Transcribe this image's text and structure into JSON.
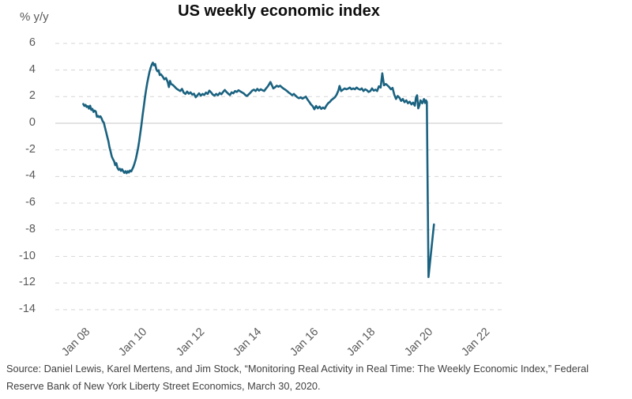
{
  "header": {
    "title": "US weekly economic index",
    "y_axis_unit": "% y/y"
  },
  "source_note": {
    "line1": "Source: Daniel Lewis, Karel Mertens, and Jim Stock, “Monitoring Real Activity in Real Time: The Weekly Economic Index,” Federal",
    "line2": "Reserve Bank of New York Liberty Street Economics, March 30, 2020."
  },
  "colors": {
    "line": "#1a6280",
    "grid": "#d9d9d9",
    "zero_line": "#d2d2d2",
    "axis_text": "#595959",
    "title_text": "#0d0d0d",
    "source_text": "#3f3f3f",
    "background": "#ffffff"
  },
  "chart_data": {
    "type": "line",
    "title": "US weekly economic index",
    "ylabel": "% y/y",
    "xlabel": "",
    "legend_position": "none",
    "grid": "horizontal dashed gridlines; solid line at zero",
    "x_range": [
      2007.08,
      2022.75
    ],
    "y_range": [
      -14,
      6
    ],
    "y_ticks": [
      6,
      4,
      2,
      0,
      -2,
      -4,
      -6,
      -8,
      -10,
      -12,
      -14
    ],
    "x_ticks": [
      {
        "year": 2008,
        "label": "Jan 08"
      },
      {
        "year": 2010,
        "label": "Jan 10"
      },
      {
        "year": 2012,
        "label": "Jan 12"
      },
      {
        "year": 2014,
        "label": "Jan 14"
      },
      {
        "year": 2016,
        "label": "Jan 16"
      },
      {
        "year": 2018,
        "label": "Jan 18"
      },
      {
        "year": 2020,
        "label": "Jan 20"
      },
      {
        "year": 2022,
        "label": "Jan 22"
      }
    ],
    "series": [
      {
        "name": "US Weekly Economic Index (% y/y)",
        "color": "#1a6280",
        "points": [
          [
            2008.06,
            1.45
          ],
          [
            2008.1,
            1.3
          ],
          [
            2008.14,
            1.38
          ],
          [
            2008.18,
            1.22
          ],
          [
            2008.22,
            1.28
          ],
          [
            2008.26,
            1.1
          ],
          [
            2008.3,
            1.32
          ],
          [
            2008.34,
            1.0
          ],
          [
            2008.38,
            1.08
          ],
          [
            2008.42,
            0.85
          ],
          [
            2008.46,
            0.95
          ],
          [
            2008.5,
            0.88
          ],
          [
            2008.54,
            0.48
          ],
          [
            2008.58,
            0.55
          ],
          [
            2008.62,
            0.45
          ],
          [
            2008.66,
            0.52
          ],
          [
            2008.7,
            0.38
          ],
          [
            2008.74,
            0.15
          ],
          [
            2008.78,
            0.05
          ],
          [
            2008.82,
            -0.3
          ],
          [
            2008.86,
            -0.65
          ],
          [
            2008.9,
            -1.0
          ],
          [
            2008.94,
            -1.35
          ],
          [
            2008.98,
            -1.8
          ],
          [
            2009.02,
            -2.15
          ],
          [
            2009.06,
            -2.5
          ],
          [
            2009.1,
            -2.7
          ],
          [
            2009.14,
            -2.85
          ],
          [
            2009.18,
            -3.15
          ],
          [
            2009.22,
            -3.0
          ],
          [
            2009.26,
            -3.35
          ],
          [
            2009.3,
            -3.5
          ],
          [
            2009.34,
            -3.42
          ],
          [
            2009.38,
            -3.58
          ],
          [
            2009.42,
            -3.45
          ],
          [
            2009.46,
            -3.6
          ],
          [
            2009.5,
            -3.72
          ],
          [
            2009.54,
            -3.6
          ],
          [
            2009.58,
            -3.75
          ],
          [
            2009.62,
            -3.6
          ],
          [
            2009.66,
            -3.7
          ],
          [
            2009.7,
            -3.55
          ],
          [
            2009.74,
            -3.62
          ],
          [
            2009.78,
            -3.45
          ],
          [
            2009.82,
            -3.25
          ],
          [
            2009.86,
            -3.0
          ],
          [
            2009.9,
            -2.7
          ],
          [
            2009.94,
            -2.3
          ],
          [
            2009.98,
            -1.9
          ],
          [
            2010.02,
            -1.35
          ],
          [
            2010.06,
            -0.75
          ],
          [
            2010.1,
            -0.1
          ],
          [
            2010.14,
            0.6
          ],
          [
            2010.18,
            1.25
          ],
          [
            2010.22,
            1.9
          ],
          [
            2010.26,
            2.5
          ],
          [
            2010.3,
            3.0
          ],
          [
            2010.34,
            3.45
          ],
          [
            2010.38,
            3.85
          ],
          [
            2010.42,
            4.15
          ],
          [
            2010.46,
            4.4
          ],
          [
            2010.5,
            4.55
          ],
          [
            2010.54,
            4.35
          ],
          [
            2010.58,
            4.45
          ],
          [
            2010.62,
            4.05
          ],
          [
            2010.66,
            3.9
          ],
          [
            2010.7,
            3.98
          ],
          [
            2010.74,
            3.62
          ],
          [
            2010.78,
            3.68
          ],
          [
            2010.84,
            3.52
          ],
          [
            2010.9,
            3.3
          ],
          [
            2010.96,
            3.4
          ],
          [
            2011.02,
            3.1
          ],
          [
            2011.06,
            2.72
          ],
          [
            2011.1,
            3.18
          ],
          [
            2011.14,
            2.95
          ],
          [
            2011.2,
            2.88
          ],
          [
            2011.26,
            2.75
          ],
          [
            2011.32,
            2.62
          ],
          [
            2011.4,
            2.5
          ],
          [
            2011.46,
            2.42
          ],
          [
            2011.52,
            2.58
          ],
          [
            2011.58,
            2.3
          ],
          [
            2011.64,
            2.2
          ],
          [
            2011.7,
            2.38
          ],
          [
            2011.76,
            2.22
          ],
          [
            2011.82,
            2.32
          ],
          [
            2011.88,
            2.15
          ],
          [
            2011.94,
            2.22
          ],
          [
            2012.0,
            1.95
          ],
          [
            2012.06,
            2.1
          ],
          [
            2012.12,
            2.25
          ],
          [
            2012.18,
            2.08
          ],
          [
            2012.24,
            2.2
          ],
          [
            2012.3,
            2.12
          ],
          [
            2012.36,
            2.3
          ],
          [
            2012.42,
            2.2
          ],
          [
            2012.48,
            2.45
          ],
          [
            2012.54,
            2.32
          ],
          [
            2012.6,
            2.15
          ],
          [
            2012.66,
            2.08
          ],
          [
            2012.72,
            2.2
          ],
          [
            2012.78,
            2.1
          ],
          [
            2012.84,
            2.28
          ],
          [
            2012.9,
            2.18
          ],
          [
            2012.96,
            2.35
          ],
          [
            2013.02,
            2.5
          ],
          [
            2013.08,
            2.35
          ],
          [
            2013.14,
            2.22
          ],
          [
            2013.2,
            2.12
          ],
          [
            2013.26,
            2.32
          ],
          [
            2013.32,
            2.25
          ],
          [
            2013.38,
            2.42
          ],
          [
            2013.44,
            2.35
          ],
          [
            2013.5,
            2.48
          ],
          [
            2013.56,
            2.4
          ],
          [
            2013.62,
            2.32
          ],
          [
            2013.68,
            2.25
          ],
          [
            2013.74,
            2.12
          ],
          [
            2013.8,
            2.05
          ],
          [
            2013.86,
            2.18
          ],
          [
            2013.92,
            2.3
          ],
          [
            2013.98,
            2.45
          ],
          [
            2014.04,
            2.52
          ],
          [
            2014.1,
            2.42
          ],
          [
            2014.16,
            2.58
          ],
          [
            2014.22,
            2.45
          ],
          [
            2014.28,
            2.55
          ],
          [
            2014.34,
            2.48
          ],
          [
            2014.4,
            2.42
          ],
          [
            2014.46,
            2.6
          ],
          [
            2014.52,
            2.75
          ],
          [
            2014.58,
            2.95
          ],
          [
            2014.62,
            3.1
          ],
          [
            2014.66,
            2.9
          ],
          [
            2014.72,
            2.62
          ],
          [
            2014.78,
            2.7
          ],
          [
            2014.84,
            2.82
          ],
          [
            2014.9,
            2.75
          ],
          [
            2014.96,
            2.82
          ],
          [
            2015.02,
            2.7
          ],
          [
            2015.08,
            2.6
          ],
          [
            2015.14,
            2.52
          ],
          [
            2015.2,
            2.42
          ],
          [
            2015.26,
            2.3
          ],
          [
            2015.32,
            2.22
          ],
          [
            2015.38,
            2.1
          ],
          [
            2015.44,
            2.2
          ],
          [
            2015.5,
            2.08
          ],
          [
            2015.56,
            1.95
          ],
          [
            2015.62,
            1.88
          ],
          [
            2015.68,
            1.95
          ],
          [
            2015.74,
            1.85
          ],
          [
            2015.8,
            1.92
          ],
          [
            2015.86,
            2.0
          ],
          [
            2015.92,
            1.78
          ],
          [
            2015.98,
            1.6
          ],
          [
            2016.04,
            1.42
          ],
          [
            2016.1,
            1.28
          ],
          [
            2016.16,
            1.05
          ],
          [
            2016.22,
            1.3
          ],
          [
            2016.28,
            1.12
          ],
          [
            2016.34,
            1.25
          ],
          [
            2016.4,
            1.08
          ],
          [
            2016.46,
            1.18
          ],
          [
            2016.52,
            1.1
          ],
          [
            2016.58,
            1.32
          ],
          [
            2016.64,
            1.5
          ],
          [
            2016.7,
            1.6
          ],
          [
            2016.76,
            1.75
          ],
          [
            2016.82,
            1.85
          ],
          [
            2016.88,
            1.95
          ],
          [
            2016.94,
            2.15
          ],
          [
            2017.0,
            2.45
          ],
          [
            2017.04,
            2.8
          ],
          [
            2017.1,
            2.42
          ],
          [
            2017.16,
            2.52
          ],
          [
            2017.22,
            2.62
          ],
          [
            2017.28,
            2.55
          ],
          [
            2017.34,
            2.6
          ],
          [
            2017.4,
            2.68
          ],
          [
            2017.46,
            2.55
          ],
          [
            2017.52,
            2.62
          ],
          [
            2017.58,
            2.55
          ],
          [
            2017.64,
            2.68
          ],
          [
            2017.7,
            2.58
          ],
          [
            2017.76,
            2.52
          ],
          [
            2017.82,
            2.62
          ],
          [
            2017.88,
            2.42
          ],
          [
            2017.94,
            2.55
          ],
          [
            2018.0,
            2.48
          ],
          [
            2018.06,
            2.35
          ],
          [
            2018.12,
            2.42
          ],
          [
            2018.18,
            2.62
          ],
          [
            2018.24,
            2.45
          ],
          [
            2018.3,
            2.52
          ],
          [
            2018.36,
            2.42
          ],
          [
            2018.42,
            2.78
          ],
          [
            2018.48,
            2.68
          ],
          [
            2018.54,
            3.75
          ],
          [
            2018.6,
            2.85
          ],
          [
            2018.66,
            2.95
          ],
          [
            2018.72,
            2.85
          ],
          [
            2018.78,
            2.72
          ],
          [
            2018.84,
            2.55
          ],
          [
            2018.9,
            2.65
          ],
          [
            2018.96,
            2.15
          ],
          [
            2019.02,
            1.82
          ],
          [
            2019.08,
            2.05
          ],
          [
            2019.14,
            1.92
          ],
          [
            2019.2,
            1.68
          ],
          [
            2019.26,
            1.82
          ],
          [
            2019.32,
            1.58
          ],
          [
            2019.38,
            1.72
          ],
          [
            2019.44,
            1.5
          ],
          [
            2019.5,
            1.62
          ],
          [
            2019.56,
            1.42
          ],
          [
            2019.62,
            1.55
          ],
          [
            2019.68,
            1.32
          ],
          [
            2019.72,
            1.95
          ],
          [
            2019.76,
            2.1
          ],
          [
            2019.8,
            1.12
          ],
          [
            2019.84,
            1.35
          ],
          [
            2019.88,
            1.72
          ],
          [
            2019.94,
            1.5
          ],
          [
            2020.0,
            1.82
          ],
          [
            2020.04,
            1.52
          ],
          [
            2020.07,
            1.72
          ],
          [
            2020.1,
            1.6
          ],
          [
            2020.16,
            -11.55
          ],
          [
            2020.35,
            -7.6
          ]
        ]
      }
    ]
  }
}
